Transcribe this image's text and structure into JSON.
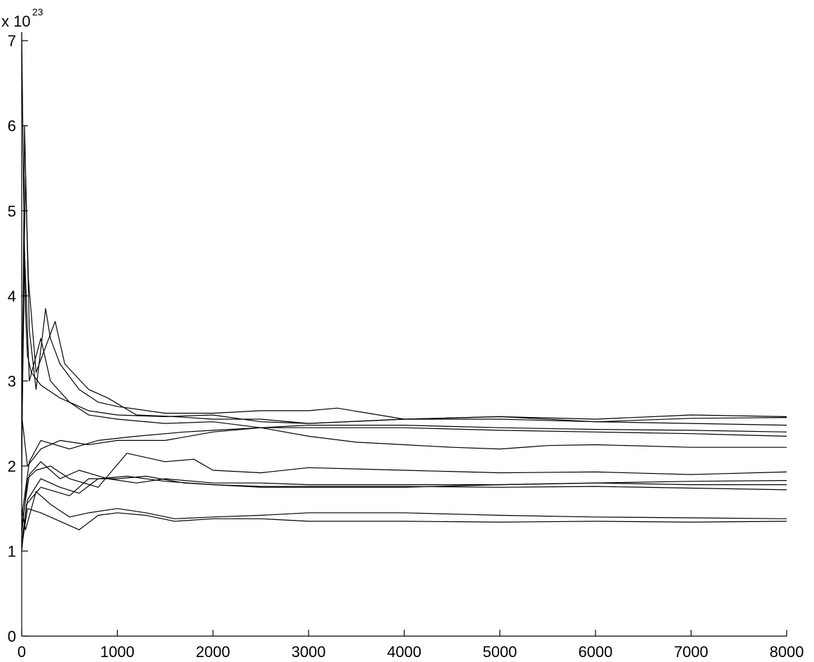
{
  "chart_data": {
    "type": "line",
    "title": "",
    "xlabel": "",
    "ylabel": "",
    "xlim": [
      0,
      8000
    ],
    "ylim": [
      0,
      7.1
    ],
    "y_multiplier_text": "x 10",
    "y_multiplier_exponent": "23",
    "xticks": [
      0,
      1000,
      2000,
      3000,
      4000,
      5000,
      6000,
      7000,
      8000
    ],
    "xtick_labels": [
      "0",
      "1000",
      "2000",
      "3000",
      "4000",
      "5000",
      "6000",
      "7000",
      "8000"
    ],
    "yticks": [
      0,
      1,
      2,
      3,
      4,
      5,
      6,
      7
    ],
    "ytick_labels": [
      "0",
      "1",
      "2",
      "3",
      "4",
      "5",
      "6",
      "7"
    ],
    "grid": false,
    "legend": "none",
    "line_color": "#000000",
    "series": [
      {
        "points": [
          [
            0,
            7.1
          ],
          [
            20,
            5.2
          ],
          [
            40,
            3.8
          ],
          [
            60,
            3.3
          ],
          [
            100,
            3.1
          ],
          [
            200,
            2.95
          ],
          [
            400,
            2.8
          ],
          [
            700,
            2.65
          ],
          [
            1000,
            2.6
          ],
          [
            1500,
            2.58
          ],
          [
            2000,
            2.6
          ],
          [
            2500,
            2.52
          ],
          [
            3000,
            2.5
          ],
          [
            4000,
            2.55
          ],
          [
            5000,
            2.58
          ],
          [
            6000,
            2.52
          ],
          [
            7000,
            2.56
          ],
          [
            8000,
            2.57
          ]
        ]
      },
      {
        "points": [
          [
            0,
            1.8
          ],
          [
            30,
            6.0
          ],
          [
            50,
            5.0
          ],
          [
            80,
            3.6
          ],
          [
            150,
            2.9
          ],
          [
            250,
            3.85
          ],
          [
            300,
            3.5
          ],
          [
            400,
            3.2
          ],
          [
            600,
            2.9
          ],
          [
            800,
            2.75
          ],
          [
            1000,
            2.7
          ],
          [
            1500,
            2.62
          ],
          [
            2000,
            2.62
          ],
          [
            2500,
            2.65
          ],
          [
            3000,
            2.65
          ],
          [
            3300,
            2.68
          ],
          [
            4000,
            2.55
          ],
          [
            5000,
            2.58
          ],
          [
            6000,
            2.55
          ],
          [
            7000,
            2.6
          ],
          [
            8000,
            2.58
          ]
        ]
      },
      {
        "points": [
          [
            0,
            3.0
          ],
          [
            40,
            5.4
          ],
          [
            70,
            4.2
          ],
          [
            150,
            3.1
          ],
          [
            350,
            3.7
          ],
          [
            450,
            3.2
          ],
          [
            700,
            2.9
          ],
          [
            900,
            2.8
          ],
          [
            1200,
            2.6
          ],
          [
            1600,
            2.58
          ],
          [
            2000,
            2.55
          ],
          [
            2500,
            2.55
          ],
          [
            3000,
            2.5
          ],
          [
            4000,
            2.55
          ],
          [
            5000,
            2.55
          ],
          [
            6000,
            2.52
          ],
          [
            7000,
            2.5
          ],
          [
            8000,
            2.48
          ]
        ]
      },
      {
        "points": [
          [
            0,
            2.2
          ],
          [
            30,
            4.5
          ],
          [
            80,
            3.0
          ],
          [
            200,
            3.5
          ],
          [
            300,
            3.0
          ],
          [
            500,
            2.75
          ],
          [
            700,
            2.6
          ],
          [
            1000,
            2.55
          ],
          [
            1500,
            2.5
          ],
          [
            2000,
            2.52
          ],
          [
            2500,
            2.45
          ],
          [
            3000,
            2.48
          ],
          [
            4000,
            2.48
          ],
          [
            5000,
            2.45
          ],
          [
            6000,
            2.43
          ],
          [
            7000,
            2.42
          ],
          [
            8000,
            2.4
          ]
        ]
      },
      {
        "points": [
          [
            0,
            2.6
          ],
          [
            60,
            2.0
          ],
          [
            200,
            2.2
          ],
          [
            400,
            2.3
          ],
          [
            700,
            2.25
          ],
          [
            1000,
            2.3
          ],
          [
            1500,
            2.3
          ],
          [
            2000,
            2.4
          ],
          [
            2500,
            2.45
          ],
          [
            3000,
            2.45
          ],
          [
            4000,
            2.45
          ],
          [
            5000,
            2.42
          ],
          [
            6000,
            2.4
          ],
          [
            7000,
            2.38
          ],
          [
            8000,
            2.35
          ]
        ]
      },
      {
        "points": [
          [
            0,
            1.4
          ],
          [
            80,
            2.05
          ],
          [
            200,
            2.3
          ],
          [
            500,
            2.2
          ],
          [
            800,
            2.3
          ],
          [
            1200,
            2.35
          ],
          [
            1700,
            2.4
          ],
          [
            2000,
            2.42
          ],
          [
            2500,
            2.45
          ],
          [
            3000,
            2.35
          ],
          [
            3500,
            2.28
          ],
          [
            4000,
            2.25
          ],
          [
            4500,
            2.22
          ],
          [
            5000,
            2.2
          ],
          [
            5500,
            2.24
          ],
          [
            6000,
            2.25
          ],
          [
            7000,
            2.22
          ],
          [
            8000,
            2.22
          ]
        ]
      },
      {
        "points": [
          [
            0,
            1.2
          ],
          [
            60,
            1.85
          ],
          [
            150,
            1.95
          ],
          [
            300,
            2.0
          ],
          [
            500,
            1.85
          ],
          [
            800,
            1.75
          ],
          [
            1100,
            2.15
          ],
          [
            1500,
            2.05
          ],
          [
            1800,
            2.08
          ],
          [
            2000,
            1.95
          ],
          [
            2500,
            1.92
          ],
          [
            3000,
            1.98
          ],
          [
            4000,
            1.95
          ],
          [
            5000,
            1.92
          ],
          [
            6000,
            1.93
          ],
          [
            7000,
            1.9
          ],
          [
            8000,
            1.93
          ]
        ]
      },
      {
        "points": [
          [
            0,
            1.3
          ],
          [
            80,
            1.9
          ],
          [
            200,
            2.05
          ],
          [
            400,
            1.85
          ],
          [
            600,
            1.95
          ],
          [
            900,
            1.85
          ],
          [
            1200,
            1.8
          ],
          [
            1500,
            1.85
          ],
          [
            2000,
            1.8
          ],
          [
            2500,
            1.8
          ],
          [
            3000,
            1.78
          ],
          [
            4000,
            1.78
          ],
          [
            5000,
            1.78
          ],
          [
            6000,
            1.8
          ],
          [
            7000,
            1.82
          ],
          [
            8000,
            1.83
          ]
        ]
      },
      {
        "points": [
          [
            0,
            1.1
          ],
          [
            60,
            1.6
          ],
          [
            200,
            1.85
          ],
          [
            400,
            1.75
          ],
          [
            600,
            1.68
          ],
          [
            800,
            1.85
          ],
          [
            1100,
            1.88
          ],
          [
            1500,
            1.82
          ],
          [
            2000,
            1.78
          ],
          [
            2500,
            1.75
          ],
          [
            3000,
            1.75
          ],
          [
            4000,
            1.75
          ],
          [
            5000,
            1.78
          ],
          [
            6000,
            1.8
          ],
          [
            7000,
            1.78
          ],
          [
            8000,
            1.78
          ]
        ]
      },
      {
        "points": [
          [
            0,
            1.0
          ],
          [
            50,
            1.55
          ],
          [
            200,
            1.75
          ],
          [
            500,
            1.65
          ],
          [
            700,
            1.85
          ],
          [
            1000,
            1.85
          ],
          [
            1300,
            1.88
          ],
          [
            1700,
            1.8
          ],
          [
            2000,
            1.78
          ],
          [
            2500,
            1.76
          ],
          [
            3000,
            1.76
          ],
          [
            4000,
            1.76
          ],
          [
            5000,
            1.75
          ],
          [
            6000,
            1.76
          ],
          [
            7000,
            1.74
          ],
          [
            8000,
            1.72
          ]
        ]
      },
      {
        "points": [
          [
            0,
            1.5
          ],
          [
            40,
            1.25
          ],
          [
            150,
            1.7
          ],
          [
            300,
            1.55
          ],
          [
            500,
            1.4
          ],
          [
            700,
            1.45
          ],
          [
            1000,
            1.5
          ],
          [
            1300,
            1.45
          ],
          [
            1600,
            1.38
          ],
          [
            2000,
            1.4
          ],
          [
            2500,
            1.42
          ],
          [
            3000,
            1.45
          ],
          [
            4000,
            1.45
          ],
          [
            5000,
            1.42
          ],
          [
            6000,
            1.4
          ],
          [
            7000,
            1.39
          ],
          [
            8000,
            1.38
          ]
        ]
      },
      {
        "points": [
          [
            0,
            1.05
          ],
          [
            60,
            1.5
          ],
          [
            200,
            1.45
          ],
          [
            400,
            1.35
          ],
          [
            600,
            1.25
          ],
          [
            800,
            1.42
          ],
          [
            1000,
            1.45
          ],
          [
            1300,
            1.42
          ],
          [
            1600,
            1.35
          ],
          [
            2000,
            1.38
          ],
          [
            2500,
            1.38
          ],
          [
            3000,
            1.35
          ],
          [
            4000,
            1.35
          ],
          [
            5000,
            1.34
          ],
          [
            6000,
            1.35
          ],
          [
            7000,
            1.34
          ],
          [
            8000,
            1.35
          ]
        ]
      }
    ]
  }
}
